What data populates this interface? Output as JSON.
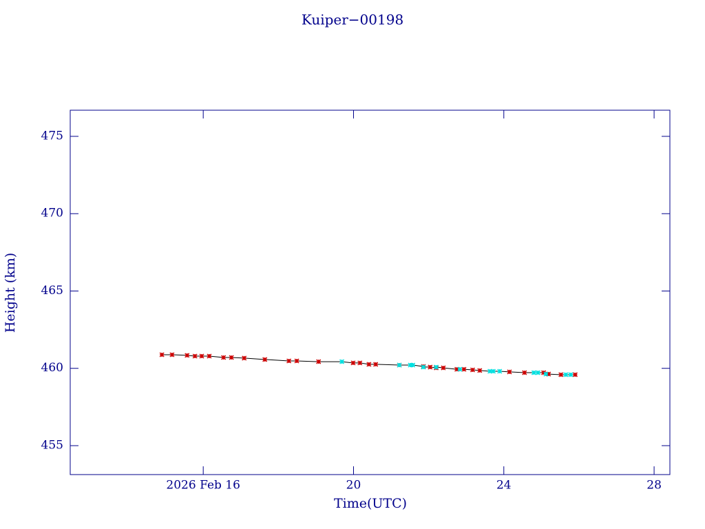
{
  "chart_data": {
    "type": "scatter",
    "title": "Kuiper−00198",
    "x_label": "Time(UTC)",
    "y_label": "Height (km)",
    "xlim": [
      12.46,
      28.42
    ],
    "ylim": [
      453.13,
      476.69
    ],
    "xticks": [
      {
        "value": 16,
        "label": "2026 Feb 16"
      },
      20,
      24,
      28
    ],
    "yticks": [
      455,
      460,
      465,
      470,
      475
    ],
    "axis_color": "#00008b",
    "line_color": "#000000",
    "series": [
      {
        "name": "red",
        "color": "#cc0000",
        "x": [
          14.9,
          15.17,
          15.57,
          15.78,
          15.96,
          16.16,
          16.54,
          16.75,
          17.09,
          17.64,
          18.28,
          18.49,
          19.07,
          19.99,
          20.17,
          20.41,
          20.59,
          21.22,
          21.86,
          22.04,
          22.2,
          22.39,
          22.75,
          22.94,
          23.17,
          23.36,
          24.15,
          24.55,
          25.06,
          25.19,
          25.52,
          25.9
        ],
        "values": [
          460.88,
          460.88,
          460.84,
          460.79,
          460.79,
          460.79,
          460.7,
          460.7,
          460.66,
          460.57,
          460.48,
          460.48,
          460.43,
          460.35,
          460.35,
          460.26,
          460.26,
          460.21,
          460.12,
          460.08,
          460.03,
          460.03,
          459.94,
          459.94,
          459.9,
          459.86,
          459.77,
          459.72,
          459.72,
          459.63,
          459.59,
          459.59
        ]
      },
      {
        "name": "cyan",
        "color": "#00e0e0",
        "x": [
          19.69,
          21.22,
          21.51,
          21.58,
          21.86,
          22.2,
          22.83,
          23.63,
          23.72,
          23.89,
          24.8,
          24.91,
          25.12,
          25.65,
          25.78
        ],
        "values": [
          460.43,
          460.21,
          460.21,
          460.21,
          460.08,
          460.08,
          459.94,
          459.81,
          459.81,
          459.81,
          459.72,
          459.72,
          459.63,
          459.59,
          459.59
        ]
      }
    ]
  }
}
